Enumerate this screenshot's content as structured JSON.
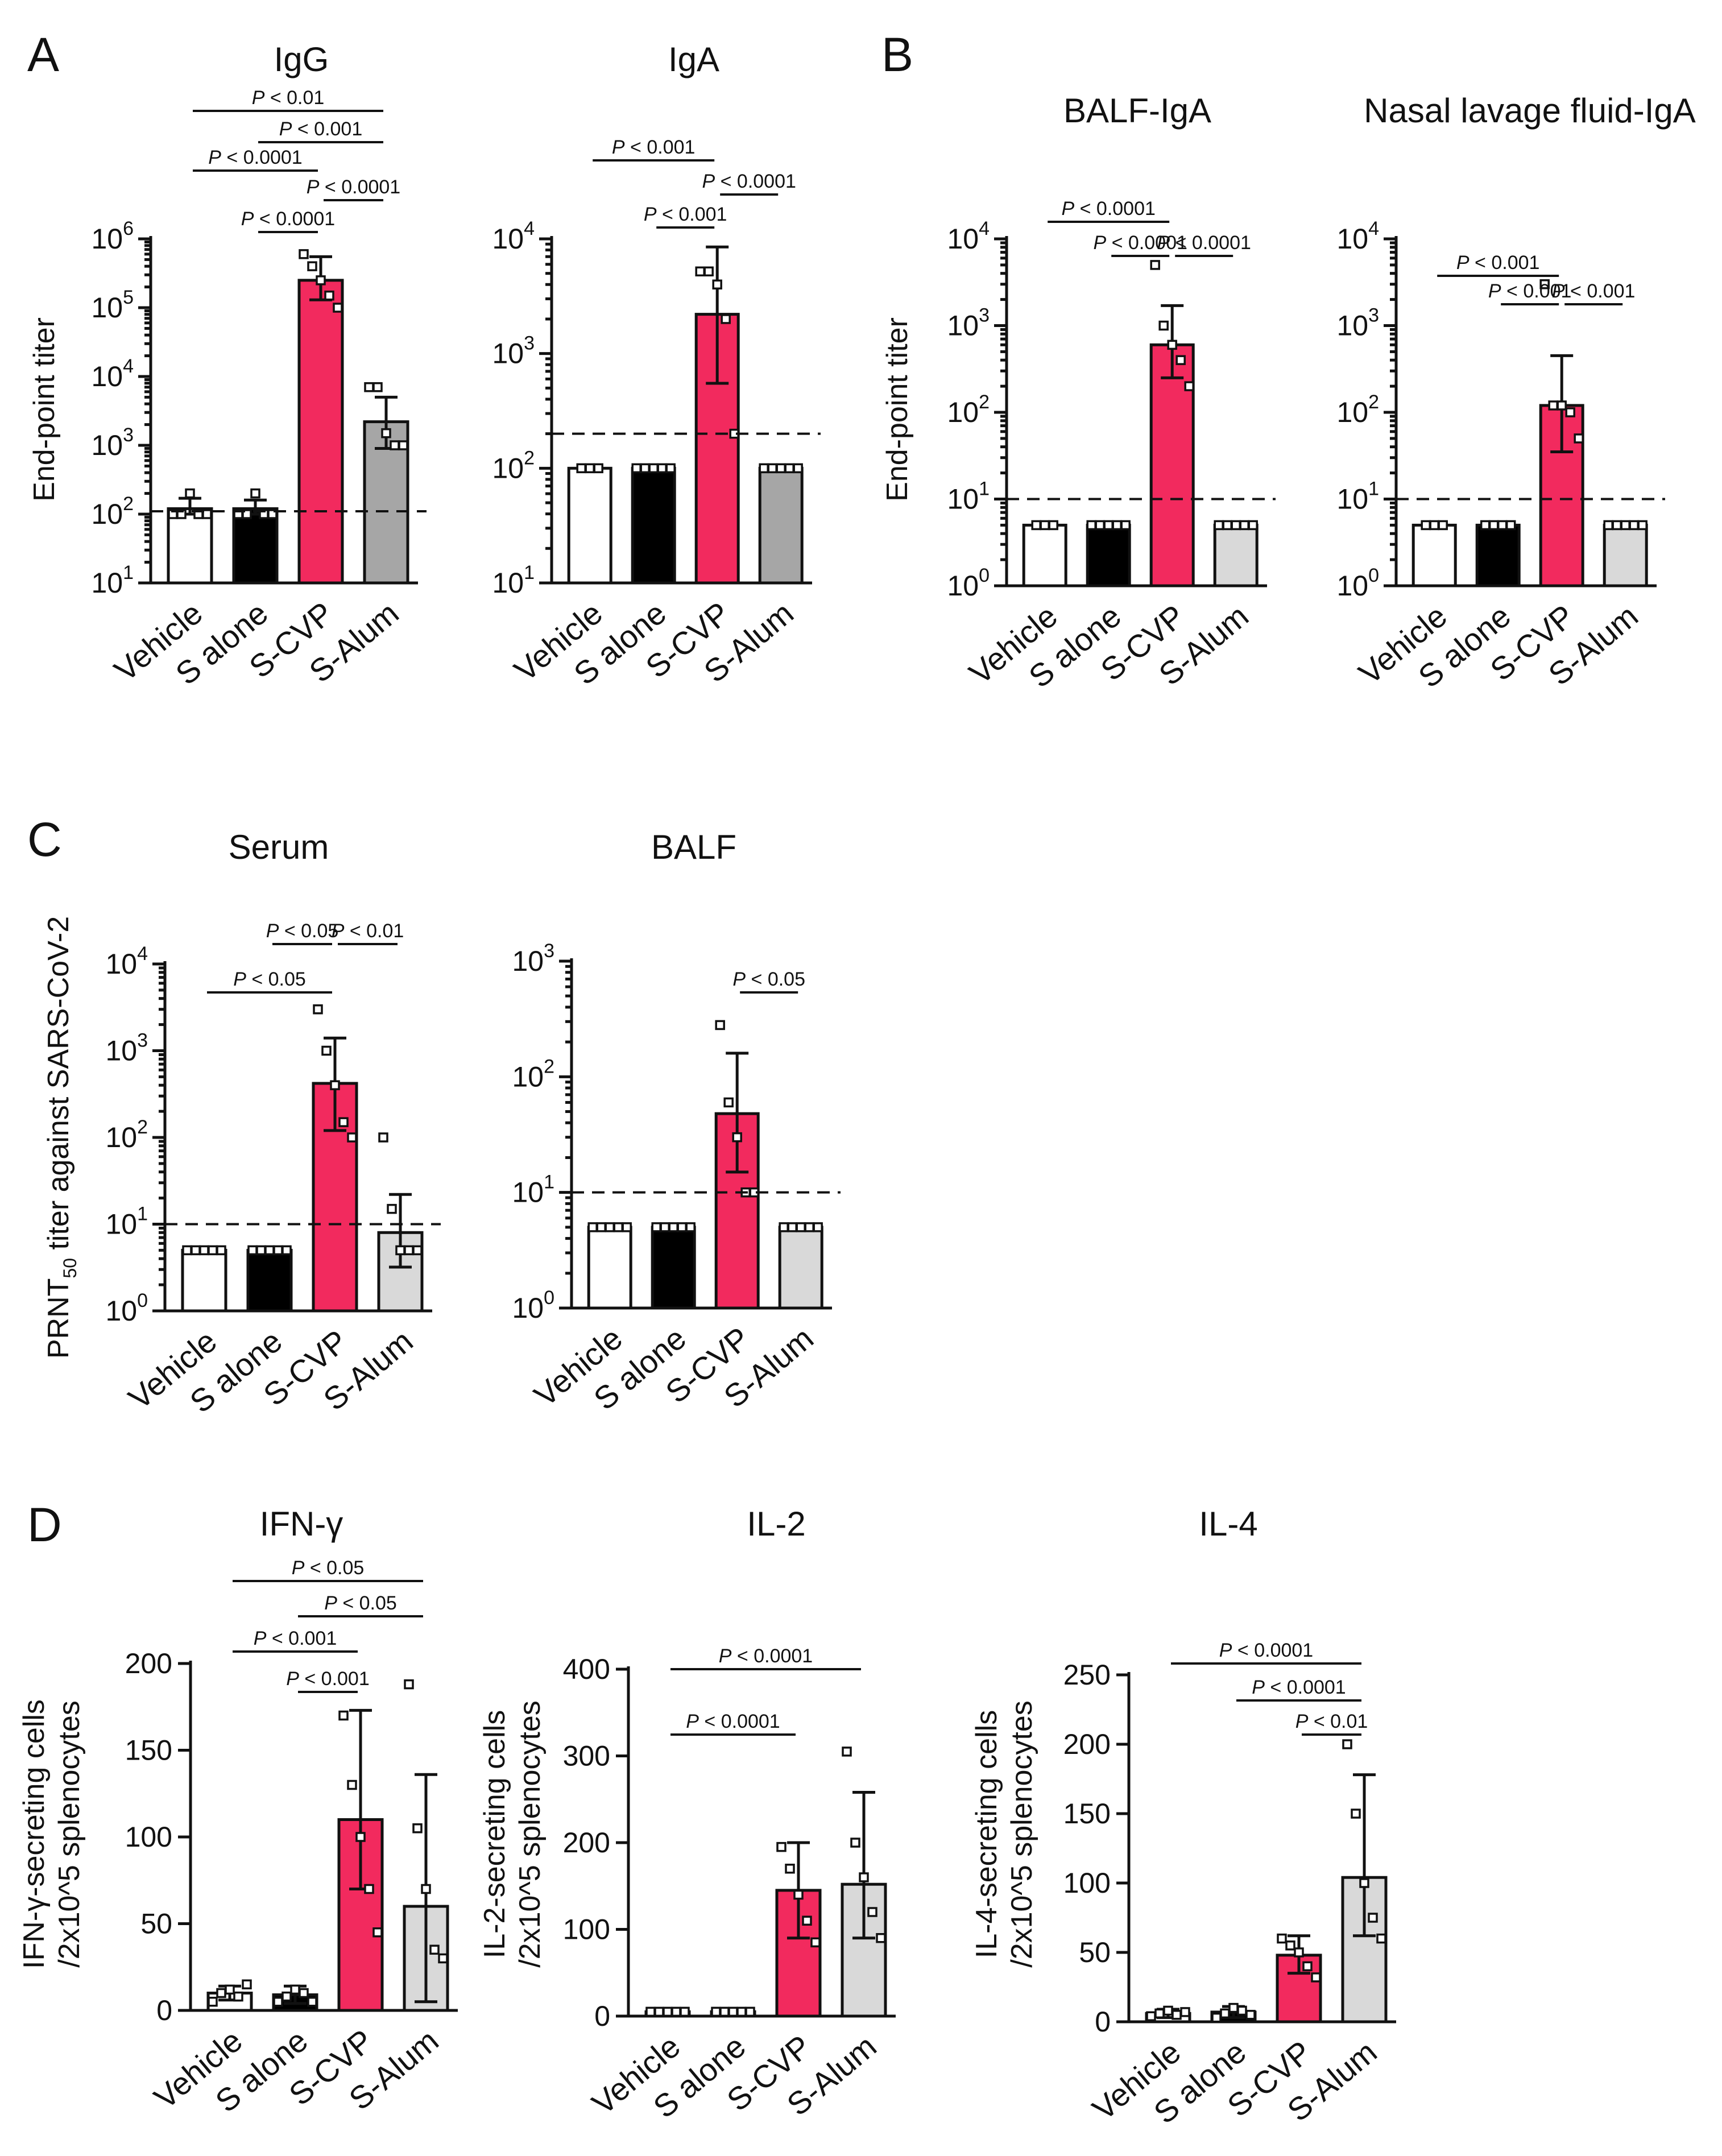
{
  "panel_letters": [
    "A",
    "B",
    "C",
    "D"
  ],
  "colors": {
    "Vehicle": "#ffffff",
    "S alone": "#000000",
    "S-CVP": "#f22a5e",
    "S-Alum A": "#a6a6a6",
    "S-Alum light": "#d9d9d9",
    "axis": "#111111"
  },
  "chart_data": [
    {
      "id": "A-IgG",
      "panel": "A",
      "type": "bar",
      "scale": "log",
      "title": "IgG",
      "ylabel": "End-point titer",
      "ylim": [
        1,
        6
      ],
      "categories": [
        "Vehicle",
        "S alone",
        "S-CVP",
        "S-Alum"
      ],
      "values": [
        120,
        120,
        250000,
        2200
      ],
      "error": [
        [
          100,
          170
        ],
        [
          100,
          160
        ],
        [
          130000,
          550000
        ],
        [
          900,
          5000
        ]
      ],
      "points": [
        [
          100,
          100,
          200,
          100,
          100
        ],
        [
          100,
          100,
          200,
          100,
          100
        ],
        [
          600000,
          400000,
          250000,
          150000,
          100000
        ],
        [
          7000,
          7000,
          1500,
          1000,
          1000
        ]
      ],
      "cutoff": 110,
      "comparisons": [
        {
          "label": "P < 0.01",
          "from": 0,
          "to": 3
        },
        {
          "label": "P < 0.001",
          "from": 1,
          "to": 3
        },
        {
          "label": "P < 0.0001",
          "from": 0,
          "to": 2
        },
        {
          "label": "P < 0.0001",
          "from": 2,
          "to": 3
        },
        {
          "label": "P < 0.0001",
          "from": 1,
          "to": 2
        }
      ]
    },
    {
      "id": "A-IgA",
      "panel": "A",
      "type": "bar",
      "scale": "log",
      "title": "IgA",
      "ylabel": "",
      "ylim": [
        1,
        4
      ],
      "categories": [
        "Vehicle",
        "S alone",
        "S-CVP",
        "S-Alum"
      ],
      "values": [
        100,
        100,
        2200,
        100
      ],
      "error": [
        [
          100,
          100
        ],
        [
          100,
          100
        ],
        [
          550,
          8500
        ],
        [
          100,
          100
        ]
      ],
      "points": [
        [
          100,
          100,
          100
        ],
        [
          100,
          100,
          100,
          100,
          100
        ],
        [
          5200,
          5200,
          4000,
          2000,
          200
        ],
        [
          100,
          100,
          100,
          100,
          100
        ]
      ],
      "cutoff": 200,
      "comparisons": [
        {
          "label": "P < 0.001",
          "from": 0,
          "to": 2
        },
        {
          "label": "P < 0.0001",
          "from": 2,
          "to": 3
        },
        {
          "label": "P < 0.001",
          "from": 1,
          "to": 2
        }
      ]
    },
    {
      "id": "B-BALF",
      "panel": "B",
      "type": "bar",
      "scale": "log",
      "title": "BALF-IgA",
      "ylabel": "End-point titer",
      "ylim": [
        0,
        4
      ],
      "categories": [
        "Vehicle",
        "S alone",
        "S-CVP",
        "S-Alum"
      ],
      "values": [
        5,
        5,
        600,
        5
      ],
      "error": [
        [
          5,
          5
        ],
        [
          5,
          5
        ],
        [
          250,
          1700
        ],
        [
          5,
          5
        ]
      ],
      "points": [
        [
          5,
          5,
          5
        ],
        [
          5,
          5,
          5,
          5,
          5
        ],
        [
          5000,
          1000,
          600,
          400,
          200
        ],
        [
          5,
          5,
          5,
          5,
          5
        ]
      ],
      "cutoff": 10,
      "comparisons": [
        {
          "label": "P < 0.0001",
          "from": 0,
          "to": 2
        },
        {
          "label": "P < 0.0001",
          "from": 1,
          "to": 2
        },
        {
          "label": "P < 0.0001",
          "from": 2,
          "to": 3
        }
      ]
    },
    {
      "id": "B-Nasal",
      "panel": "B",
      "type": "bar",
      "scale": "log",
      "title": "Nasal lavage fluid-IgA",
      "ylabel": "",
      "ylim": [
        0,
        4
      ],
      "categories": [
        "Vehicle",
        "S alone",
        "S-CVP",
        "S-Alum"
      ],
      "values": [
        5,
        5,
        120,
        5
      ],
      "error": [
        [
          5,
          5
        ],
        [
          5,
          5
        ],
        [
          35,
          450
        ],
        [
          5,
          5
        ]
      ],
      "points": [
        [
          5,
          5,
          5
        ],
        [
          5,
          5,
          5,
          5
        ],
        [
          3000,
          120,
          120,
          100,
          50
        ],
        [
          5,
          5,
          5,
          5,
          5
        ]
      ],
      "cutoff": 10,
      "comparisons": [
        {
          "label": "P < 0.001",
          "from": 0,
          "to": 2
        },
        {
          "label": "P < 0.001",
          "from": 1,
          "to": 2
        },
        {
          "label": "P < 0.001",
          "from": 2,
          "to": 3
        }
      ]
    },
    {
      "id": "C-Serum",
      "panel": "C",
      "type": "bar",
      "scale": "log",
      "title": "Serum",
      "ylabel": "PRNT50 titer against SARS-CoV-2",
      "ylim": [
        0,
        4
      ],
      "categories": [
        "Vehicle",
        "S alone",
        "S-CVP",
        "S-Alum"
      ],
      "values": [
        5,
        5,
        420,
        8
      ],
      "error": [
        [
          5,
          5
        ],
        [
          5,
          5
        ],
        [
          120,
          1400
        ],
        [
          3.2,
          22
        ]
      ],
      "points": [
        [
          5,
          5,
          5,
          5,
          5
        ],
        [
          5,
          5,
          5,
          5,
          5
        ],
        [
          3000,
          1000,
          400,
          150,
          100
        ],
        [
          100,
          15,
          5,
          5,
          5
        ]
      ],
      "cutoff": 10,
      "comparisons": [
        {
          "label": "P < 0.05",
          "from": 1,
          "to": 2
        },
        {
          "label": "P < 0.01",
          "from": 2,
          "to": 3
        },
        {
          "label": "P < 0.05",
          "from": 0,
          "to": 2
        }
      ]
    },
    {
      "id": "C-BALF",
      "panel": "C",
      "type": "bar",
      "scale": "log",
      "title": "BALF",
      "ylabel": "",
      "ylim": [
        0,
        3
      ],
      "categories": [
        "Vehicle",
        "S alone",
        "S-CVP",
        "S-Alum"
      ],
      "values": [
        5,
        5,
        48,
        5
      ],
      "error": [
        [
          5,
          5
        ],
        [
          5,
          5
        ],
        [
          15,
          160
        ],
        [
          5,
          5
        ]
      ],
      "points": [
        [
          5,
          5,
          5,
          5,
          5
        ],
        [
          5,
          5,
          5,
          5,
          5
        ],
        [
          280,
          60,
          30,
          10,
          10
        ],
        [
          5,
          5,
          5,
          5,
          5
        ]
      ],
      "cutoff": 10,
      "comparisons": [
        {
          "label": "P < 0.05",
          "from": 2,
          "to": 3
        }
      ]
    },
    {
      "id": "D-IFN",
      "panel": "D",
      "type": "bar",
      "scale": "linear",
      "title": "IFN-γ",
      "ylabel": "IFN-γ-secreting cells\n/2x10^5 splenocytes",
      "ylim": [
        0,
        200
      ],
      "yticks": [
        0,
        50,
        100,
        150,
        200
      ],
      "categories": [
        "Vehicle",
        "S alone",
        "S-CVP",
        "S-Alum"
      ],
      "values": [
        10,
        9,
        110,
        60
      ],
      "error": [
        [
          6,
          14
        ],
        [
          4,
          14
        ],
        [
          70,
          173
        ],
        [
          5,
          136
        ]
      ],
      "points": [
        [
          5,
          10,
          12,
          8,
          15
        ],
        [
          5,
          8,
          12,
          10,
          5
        ],
        [
          170,
          130,
          100,
          70,
          45
        ],
        [
          188,
          105,
          70,
          35,
          30
        ]
      ],
      "comparisons": [
        {
          "label": "P < 0.05",
          "from": 0,
          "to": 3
        },
        {
          "label": "P < 0.05",
          "from": 1,
          "to": 3
        },
        {
          "label": "P < 0.001",
          "from": 0,
          "to": 2
        },
        {
          "label": "P < 0.001",
          "from": 1,
          "to": 2
        }
      ]
    },
    {
      "id": "D-IL2",
      "panel": "D",
      "type": "bar",
      "scale": "linear",
      "title": "IL-2",
      "ylabel": "IL-2-secreting cells\n/2x10^5 splenocytes",
      "ylim": [
        0,
        400
      ],
      "yticks": [
        0,
        100,
        200,
        300,
        400
      ],
      "categories": [
        "Vehicle",
        "S alone",
        "S-CVP",
        "S-Alum"
      ],
      "values": [
        5,
        5,
        145,
        152
      ],
      "error": [
        [
          3,
          7
        ],
        [
          3,
          7
        ],
        [
          90,
          200
        ],
        [
          90,
          258
        ]
      ],
      "points": [
        [
          5,
          5,
          5,
          5,
          5
        ],
        [
          5,
          5,
          5,
          5,
          5
        ],
        [
          195,
          170,
          140,
          110,
          85
        ],
        [
          305,
          200,
          160,
          120,
          90
        ]
      ],
      "comparisons": [
        {
          "label": "P < 0.0001",
          "from": 0,
          "to": 3
        },
        {
          "label": "P < 0.0001",
          "from": 0,
          "to": 2
        }
      ]
    },
    {
      "id": "D-IL4",
      "panel": "D",
      "type": "bar",
      "scale": "linear",
      "title": "IL-4",
      "ylabel": "IL-4-secreting cells\n/2x10^5 splenocytes",
      "ylim": [
        0,
        250
      ],
      "yticks": [
        0,
        50,
        100,
        150,
        200,
        250
      ],
      "categories": [
        "Vehicle",
        "S alone",
        "S-CVP",
        "S-Alum"
      ],
      "values": [
        6,
        7,
        48,
        104
      ],
      "error": [
        [
          3,
          9
        ],
        [
          3,
          11
        ],
        [
          35,
          62
        ],
        [
          62,
          178
        ]
      ],
      "points": [
        [
          4,
          6,
          8,
          5,
          7
        ],
        [
          3,
          6,
          10,
          8,
          5
        ],
        [
          60,
          55,
          50,
          40,
          32
        ],
        [
          200,
          150,
          100,
          75,
          60
        ]
      ],
      "comparisons": [
        {
          "label": "P < 0.0001",
          "from": 0,
          "to": 3
        },
        {
          "label": "P < 0.0001",
          "from": 1,
          "to": 3
        },
        {
          "label": "P < 0.01",
          "from": 2,
          "to": 3
        }
      ]
    }
  ]
}
